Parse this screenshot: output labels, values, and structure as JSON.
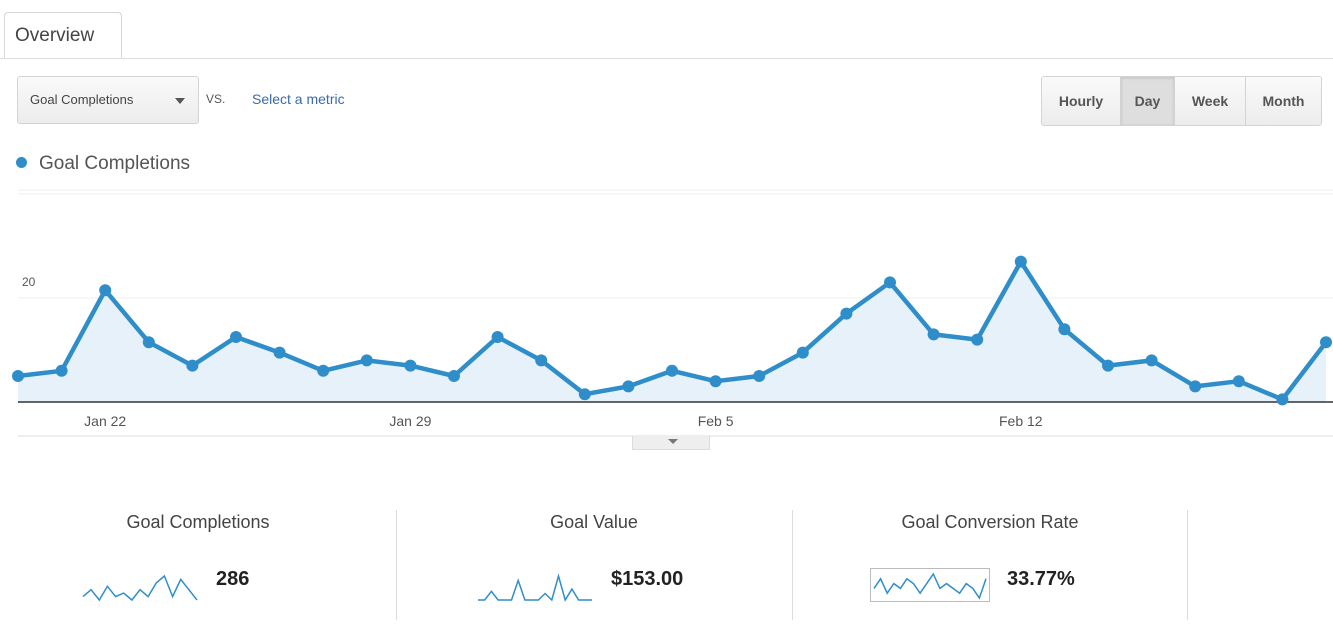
{
  "tabs": {
    "overview": "Overview"
  },
  "controls": {
    "metric_selected": "Goal Completions",
    "vs": "VS.",
    "select_metric": "Select a metric",
    "granularity": [
      "Hourly",
      "Day",
      "Week",
      "Month"
    ],
    "granularity_selected": "Day"
  },
  "colors": {
    "series": "#2f8ec9",
    "fill": "#e6f1f9",
    "link": "#3a6aa8"
  },
  "icons": {
    "dropdown": "caret-down-icon",
    "legend": "legend-dot-icon",
    "collapse": "caret-down-icon"
  },
  "chart_data": {
    "type": "line",
    "legend": "Goal Completions",
    "ylim": [
      0,
      40
    ],
    "yticks": [
      40,
      20
    ],
    "xtick_labels": [
      "Jan 22",
      "Jan 29",
      "Feb 5",
      "Feb 12"
    ],
    "x": [
      "Jan 20",
      "Jan 21",
      "Jan 22",
      "Jan 23",
      "Jan 24",
      "Jan 25",
      "Jan 26",
      "Jan 27",
      "Jan 28",
      "Jan 29",
      "Jan 30",
      "Jan 31",
      "Feb 1",
      "Feb 2",
      "Feb 3",
      "Feb 4",
      "Feb 5",
      "Feb 6",
      "Feb 7",
      "Feb 8",
      "Feb 9",
      "Feb 10",
      "Feb 11",
      "Feb 12",
      "Feb 13",
      "Feb 14",
      "Feb 15",
      "Feb 16",
      "Feb 17",
      "Feb 18",
      "Feb 19"
    ],
    "series": [
      {
        "name": "Goal Completions",
        "values": [
          5,
          6,
          21.5,
          11.5,
          7,
          12.5,
          9.5,
          6,
          8,
          7,
          5,
          12.5,
          8,
          1.5,
          3,
          6,
          4,
          5,
          9.5,
          17,
          23,
          13,
          12,
          27,
          14,
          7,
          8,
          3,
          4,
          0.5,
          11.5
        ]
      }
    ],
    "grid": true
  },
  "metrics": [
    {
      "label": "Goal Completions",
      "value": "286",
      "spark": [
        3,
        5,
        2,
        6,
        3,
        4,
        2,
        5,
        3,
        7,
        9,
        3,
        8,
        5,
        2
      ]
    },
    {
      "label": "Goal Value",
      "value": "$153.00",
      "spark": [
        0,
        0,
        4,
        0,
        0,
        0,
        9,
        0,
        0,
        0,
        3,
        0,
        11,
        0,
        5,
        0,
        0,
        0
      ]
    },
    {
      "label": "Goal Conversion Rate",
      "value": "33.77%",
      "spark": [
        5,
        7,
        4,
        6,
        5,
        7,
        6,
        4,
        6,
        8,
        5,
        6,
        5,
        4,
        6,
        5,
        3,
        7
      ]
    }
  ]
}
